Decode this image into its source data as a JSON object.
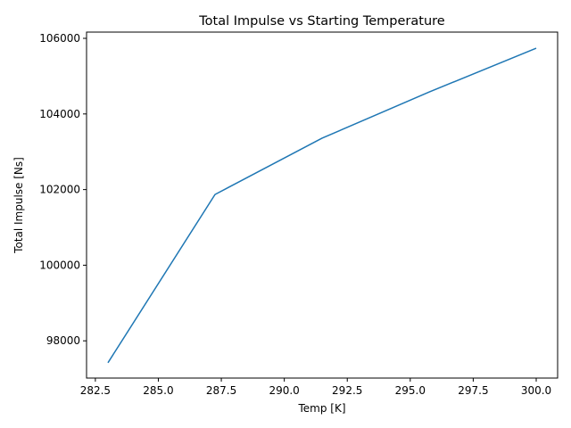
{
  "chart_data": {
    "type": "line",
    "title": "Total Impulse vs Starting Temperature",
    "xlabel": "Temp [K]",
    "ylabel": "Total Impulse [Ns]",
    "xlim": [
      282.15,
      300.85
    ],
    "ylim": [
      97015,
      106165
    ],
    "x_ticks": [
      282.5,
      285.0,
      287.5,
      290.0,
      292.5,
      295.0,
      297.5,
      300.0
    ],
    "x_tick_labels": [
      "282.5",
      "285.0",
      "287.5",
      "290.0",
      "292.5",
      "295.0",
      "297.5",
      "300.0"
    ],
    "y_ticks": [
      98000,
      100000,
      102000,
      104000,
      106000
    ],
    "y_tick_labels": [
      "98000",
      "100000",
      "102000",
      "104000",
      "106000"
    ],
    "grid": false,
    "series": [
      {
        "color": "#1f77b4",
        "x": [
          283.0,
          287.25,
          291.5,
          295.75,
          300.0
        ],
        "y": [
          97420,
          101870,
          103360,
          104580,
          105740
        ]
      }
    ]
  }
}
